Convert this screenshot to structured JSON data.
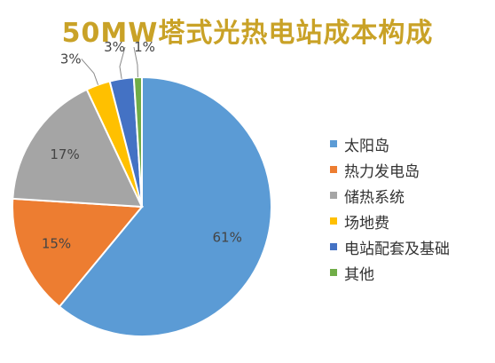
{
  "chart_data": {
    "type": "pie",
    "title": "50MW塔式光热电站成本构成",
    "categories": [
      "太阳岛",
      "热力发电岛",
      "储热系统",
      "场地费",
      "电站配套及基础",
      "其他"
    ],
    "values": [
      61,
      15,
      17,
      3,
      3,
      1
    ],
    "labels": [
      "61%",
      "15%",
      "17%",
      "3%",
      "3%",
      "1%"
    ],
    "colors": [
      "#5b9bd5",
      "#ed7d31",
      "#a5a5a5",
      "#ffc000",
      "#4472c4",
      "#70ad47"
    ],
    "legend_position": "right"
  }
}
